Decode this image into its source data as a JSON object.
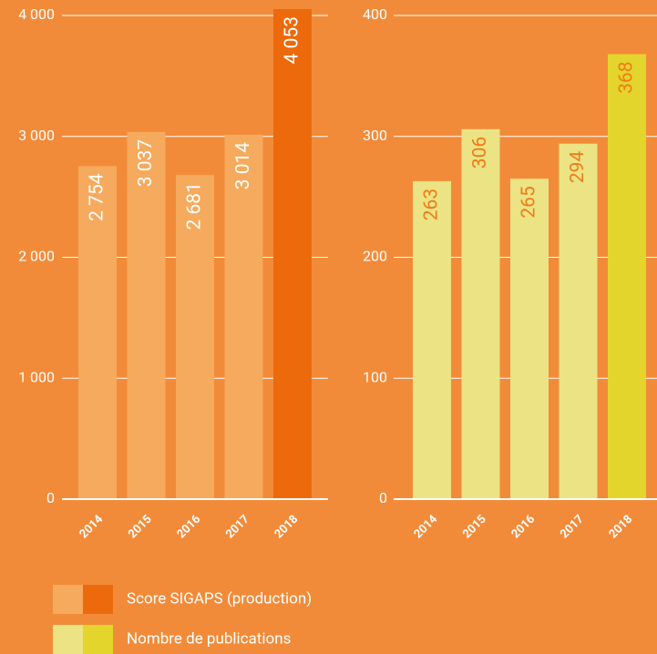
{
  "chart_data": [
    {
      "type": "bar",
      "categories": [
        "2014",
        "2015",
        "2016",
        "2017",
        "2018"
      ],
      "series": [
        {
          "name": "Score SIGAPS (production)",
          "colors": [
            "#f6aa5d",
            "#f6aa5d",
            "#f6aa5d",
            "#f6aa5d",
            "#ec6a0b"
          ],
          "label_color": "#ffffff",
          "values": [
            2754,
            3037,
            2681,
            3014,
            4053
          ],
          "value_labels": [
            "2 754",
            "3 037",
            "2 681",
            "3 014",
            "4 053"
          ]
        }
      ],
      "ylim": [
        0,
        4000
      ],
      "yticks": [
        0,
        {
          "value": 1000,
          "label": "1 000"
        },
        {
          "value": 2000,
          "label": "2 000"
        },
        {
          "value": 3000,
          "label": "3 000"
        },
        {
          "value": 4000,
          "label": "4 000"
        }
      ],
      "grid": true
    },
    {
      "type": "bar",
      "categories": [
        "2014",
        "2015",
        "2016",
        "2017",
        "2018"
      ],
      "series": [
        {
          "name": "Nombre de publications",
          "colors": [
            "#ebe384",
            "#ebe384",
            "#ebe384",
            "#ebe384",
            "#e3d52b"
          ],
          "label_color": "#f07b1a",
          "values": [
            263,
            306,
            265,
            294,
            368
          ]
        }
      ],
      "ylim": [
        0,
        400
      ],
      "yticks": [
        0,
        100,
        200,
        300,
        400
      ],
      "grid": true
    }
  ]
}
